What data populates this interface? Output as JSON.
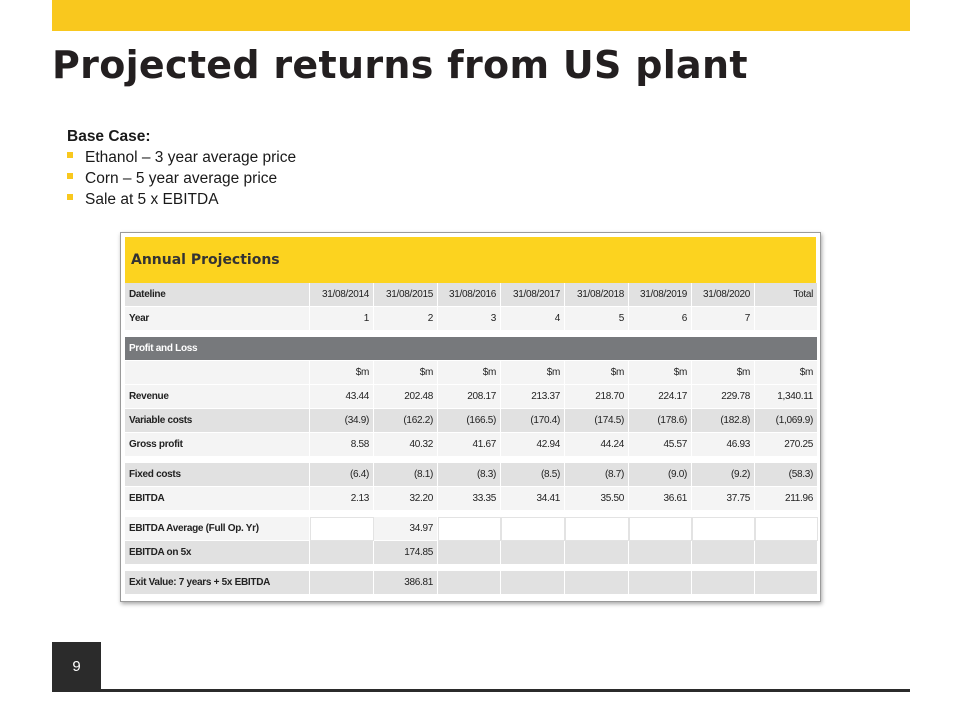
{
  "slide": {
    "title": "Projected returns from US plant",
    "base_case": {
      "heading": "Base Case:",
      "bullets": [
        "Ethanol – 3 year average price",
        "Corn – 5 year average price",
        "Sale at 5 x EBITDA"
      ]
    },
    "page_number": "9",
    "colors": {
      "accent": "#f9c81e",
      "dark": "#2b2b2b",
      "section_header": "#77797c"
    }
  },
  "table": {
    "title": "Annual Projections",
    "header": [
      "Dateline",
      "31/08/2014",
      "31/08/2015",
      "31/08/2016",
      "31/08/2017",
      "31/08/2018",
      "31/08/2019",
      "31/08/2020",
      "Total"
    ],
    "year_row": [
      "Year",
      "1",
      "2",
      "3",
      "4",
      "5",
      "6",
      "7",
      ""
    ],
    "section": "Profit and Loss",
    "units": [
      "",
      "$m",
      "$m",
      "$m",
      "$m",
      "$m",
      "$m",
      "$m",
      "$m"
    ],
    "revenue": [
      "Revenue",
      "43.44",
      "202.48",
      "208.17",
      "213.37",
      "218.70",
      "224.17",
      "229.78",
      "1,340.11"
    ],
    "variable_costs": [
      "Variable costs",
      "(34.9)",
      "(162.2)",
      "(166.5)",
      "(170.4)",
      "(174.5)",
      "(178.6)",
      "(182.8)",
      "(1,069.9)"
    ],
    "gross_profit": [
      "Gross profit",
      "8.58",
      "40.32",
      "41.67",
      "42.94",
      "44.24",
      "45.57",
      "46.93",
      "270.25"
    ],
    "fixed_costs": [
      "Fixed costs",
      "(6.4)",
      "(8.1)",
      "(8.3)",
      "(8.5)",
      "(8.7)",
      "(9.0)",
      "(9.2)",
      "(58.3)"
    ],
    "ebitda": [
      "EBITDA",
      "2.13",
      "32.20",
      "33.35",
      "34.41",
      "35.50",
      "36.61",
      "37.75",
      "211.96"
    ],
    "ebitda_avg": {
      "label": "EBITDA Average (Full Op. Yr)",
      "value": "34.97"
    },
    "ebitda_5x": {
      "label": "EBITDA on 5x",
      "value": "174.85"
    },
    "exit_value": {
      "label": "Exit Value: 7 years + 5x EBITDA",
      "value": "386.81"
    }
  }
}
